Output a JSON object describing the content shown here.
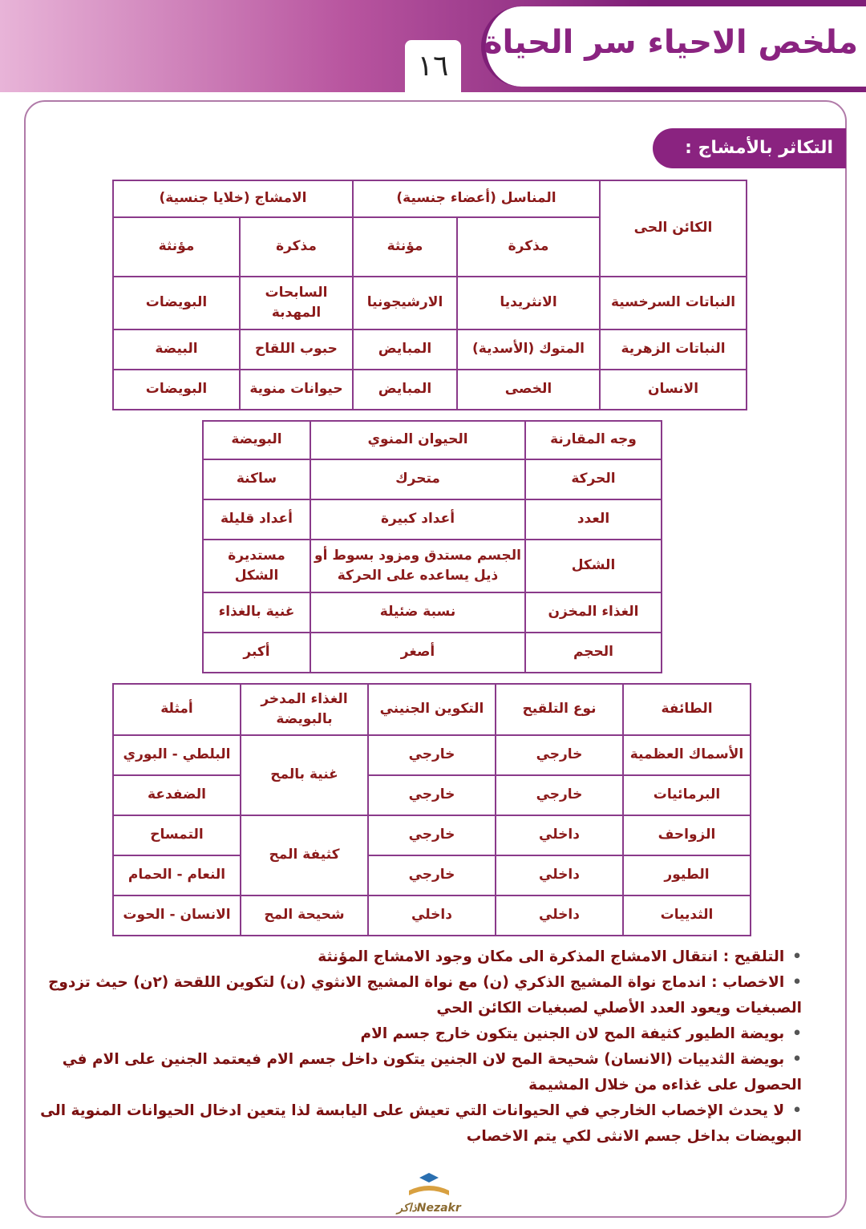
{
  "header": {
    "title": "ملخص الاحياء سر الحياة",
    "page_number": "١٦"
  },
  "section": {
    "title": "التكاثر بالأمشاج :"
  },
  "table1": {
    "headers": {
      "organism": "الكائن الحى",
      "gonads": "المناسل (أعضاء جنسية)",
      "gametes": "الامشاج (خلايا جنسية)",
      "sub": [
        "مذكرة",
        "مؤنثة",
        "مذكرة",
        "مؤنثة"
      ]
    },
    "rows": [
      [
        "النباتات السرخسية",
        "الانثريديا",
        "الارشيجونيا",
        "السابحات المهدبة",
        "البويضات"
      ],
      [
        "النباتات الزهرية",
        "المتوك (الأسدية)",
        "المبايض",
        "حبوب اللقاح",
        "البيضة"
      ],
      [
        "الانسان",
        "الخصى",
        "المبايض",
        "حيوانات منوية",
        "البويضات"
      ]
    ]
  },
  "table2": {
    "headers": [
      "وجه المقارنة",
      "الحيوان المنوي",
      "البويضة"
    ],
    "rows": [
      [
        "الحركة",
        "متحرك",
        "ساكنة"
      ],
      [
        "العدد",
        "أعداد كبيرة",
        "أعداد قليلة"
      ],
      [
        "الشكل",
        "الجسم مستدق ومزود بسوط أو ذيل يساعده على الحركة",
        "مستديرة الشكل"
      ],
      [
        "الغذاء المخزن",
        "نسبة ضئيلة",
        "غنية بالغذاء"
      ],
      [
        "الحجم",
        "أصغر",
        "أكبر"
      ]
    ]
  },
  "table3": {
    "headers": [
      "الطائفة",
      "نوع التلقيح",
      "التكوين الجنيني",
      "الغذاء المدخر بالبويضة",
      "أمثلة"
    ],
    "rows": [
      [
        "الأسماك العظمية",
        "خارجي",
        "خارجي",
        "غنية بالمح",
        "البلطي - البوري"
      ],
      [
        "البرمائيات",
        "خارجي",
        "خارجي",
        null,
        "الضفدعة"
      ],
      [
        "الزواحف",
        "داخلي",
        "خارجي",
        "كثيفة المح",
        "التمساح"
      ],
      [
        "الطيور",
        "داخلي",
        "خارجي",
        null,
        "النعام - الحمام"
      ],
      [
        "الثدييات",
        "داخلي",
        "داخلي",
        "شحيحة المح",
        "الانسان - الحوت"
      ]
    ]
  },
  "notes": [
    {
      "label": "التلقيح :",
      "text": "انتقال الامشاج المذكرة الى مكان وجود الامشاج المؤنثة"
    },
    {
      "label": "الاخصاب :",
      "text": "اندماج نواة المشيج الذكري (ن) مع نواة المشيج الانثوي (ن) لتكوين اللقحة (٢ن) حيث تزدوج الصبغيات ويعود العدد الأصلي لصبغيات الكائن الحي"
    },
    {
      "text": "بويضة الطيور كثيفة المح لان الجنين يتكون خارج جسم الام"
    },
    {
      "text": "بويضة الثدييات (الانسان) شحيحة المح لان الجنين يتكون داخل جسم الام فيعتمد الجنين على الام في الحصول على غذاءه من خلال المشيمة"
    },
    {
      "text": "لا يحدث الإخصاب الخارجي في الحيوانات التي تعيش على اليابسة لذا يتعين ادخال الحيوانات المنوية الى البويضات بداخل جسم الانثى لكي يتم الاخصاب"
    }
  ],
  "logo": {
    "latin": "Nezakr",
    "arabic": "ذاكر"
  }
}
